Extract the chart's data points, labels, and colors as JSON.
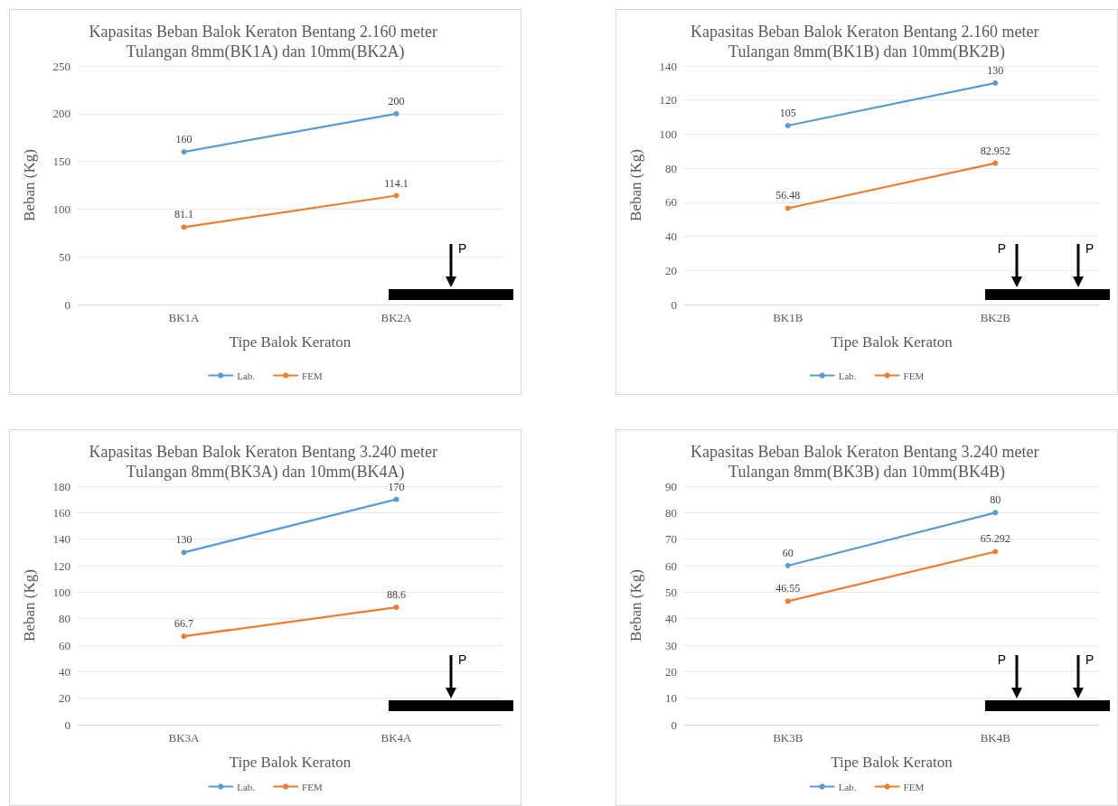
{
  "chart_data": [
    {
      "type": "line",
      "title": "Kapasitas Beban Balok Keraton Bentang 2.160 meter Tulangan 8mm(BK1A) dan 10mm(BK2A)",
      "xlabel": "Tipe Balok Keraton",
      "ylabel": "Beban (Kg)",
      "categories": [
        "BK1A",
        "BK2A"
      ],
      "series": [
        {
          "name": "Lab.",
          "color": "#5b9bd5",
          "values": [
            160,
            200
          ]
        },
        {
          "name": "FEM",
          "color": "#ed7d31",
          "values": [
            81.1,
            114.1
          ]
        }
      ],
      "ylim": [
        0,
        250
      ],
      "yticks": [
        0,
        50,
        100,
        150,
        200,
        250
      ],
      "grid": "y",
      "legend": "bottom",
      "marker": "circle",
      "line_style": "solid",
      "data_labels": true,
      "annotations": [
        "P"
      ]
    },
    {
      "type": "line",
      "title": "Kapasitas Beban Balok Keraton Bentang 2.160 meter Tulangan 8mm(BK1B) dan 10mm(BK2B)",
      "xlabel": "Tipe Balok Keraton",
      "ylabel": "Beban (Kg)",
      "categories": [
        "BK1B",
        "BK2B"
      ],
      "series": [
        {
          "name": "Lab.",
          "color": "#5b9bd5",
          "values": [
            105,
            130
          ]
        },
        {
          "name": "FEM",
          "color": "#ed7d31",
          "values": [
            56.48,
            82.952
          ]
        }
      ],
      "ylim": [
        0,
        140
      ],
      "yticks": [
        0,
        20,
        40,
        60,
        80,
        100,
        120,
        140
      ],
      "grid": "y",
      "legend": "bottom",
      "marker": "circle",
      "line_style": "solid",
      "data_labels": true,
      "annotations": [
        "P",
        "P"
      ]
    },
    {
      "type": "line",
      "title": "Kapasitas Beban Balok Keraton Bentang 3.240 meter Tulangan 8mm(BK3A) dan 10mm(BK4A)",
      "xlabel": "Tipe Balok Keraton",
      "ylabel": "Beban (Kg)",
      "categories": [
        "BK3A",
        "BK4A"
      ],
      "series": [
        {
          "name": "Lab.",
          "color": "#5b9bd5",
          "values": [
            130,
            170
          ]
        },
        {
          "name": "FEM",
          "color": "#ed7d31",
          "values": [
            66.7,
            88.6
          ]
        }
      ],
      "ylim": [
        0,
        180
      ],
      "yticks": [
        0,
        20,
        40,
        60,
        80,
        100,
        120,
        140,
        160,
        180
      ],
      "grid": "y",
      "legend": "bottom",
      "marker": "circle",
      "line_style": "solid",
      "data_labels": true,
      "annotations": [
        "P"
      ]
    },
    {
      "type": "line",
      "title": "Kapasitas Beban Balok Keraton Bentang 3.240 meter Tulangan 8mm(BK3B) dan 10mm(BK4B)",
      "xlabel": "Tipe Balok Keraton",
      "ylabel": "Beban (Kg)",
      "categories": [
        "BK3B",
        "BK4B"
      ],
      "series": [
        {
          "name": "Lab.",
          "color": "#5b9bd5",
          "values": [
            60,
            80
          ]
        },
        {
          "name": "FEM",
          "color": "#ed7d31",
          "values": [
            46.55,
            65.292
          ]
        }
      ],
      "ylim": [
        0,
        90
      ],
      "yticks": [
        0,
        10,
        20,
        30,
        40,
        50,
        60,
        70,
        80,
        90
      ],
      "grid": "y",
      "legend": "bottom",
      "marker": "circle",
      "line_style": "solid",
      "data_labels": true,
      "annotations": [
        "P",
        "P"
      ]
    }
  ]
}
